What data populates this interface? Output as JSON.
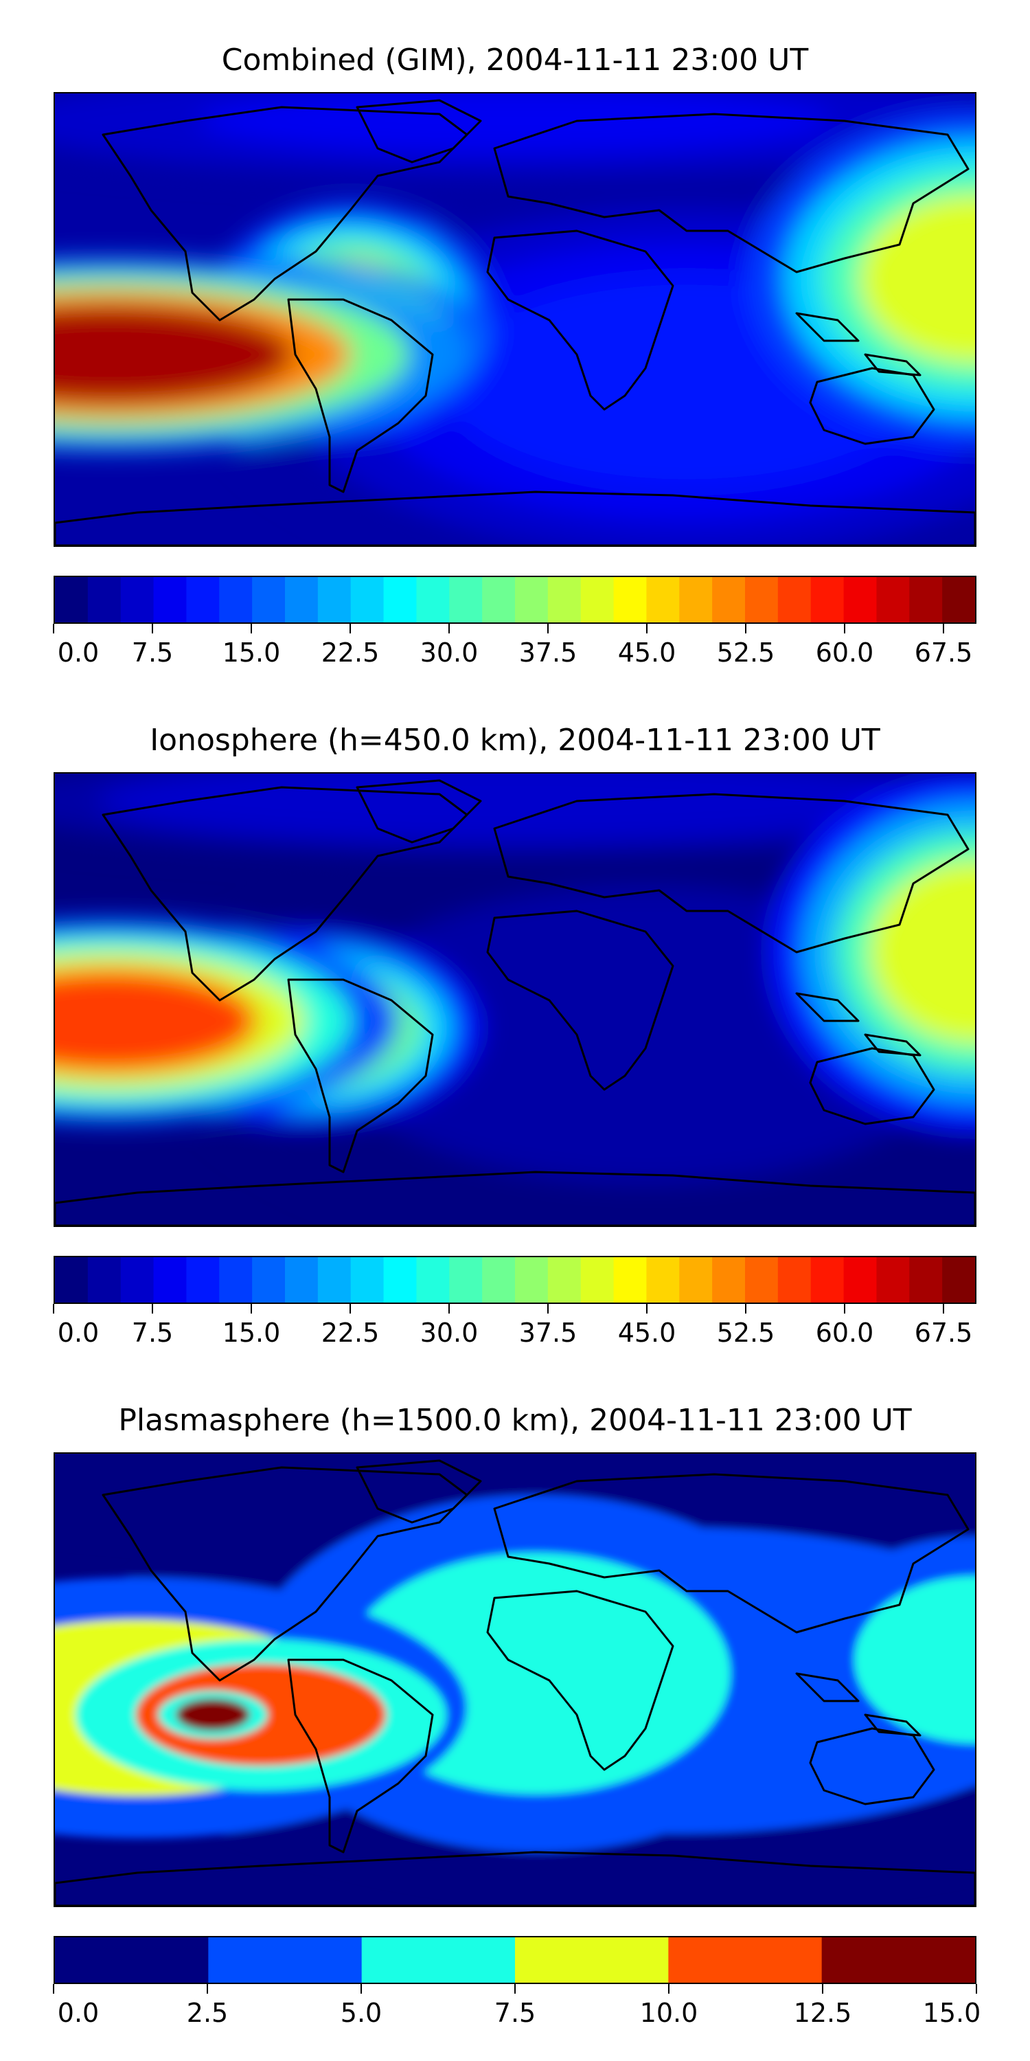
{
  "chart_data": [
    {
      "type": "heatmap",
      "title": "Combined (GIM), 2004-11-11 23:00 UT",
      "colormap": "jet",
      "levels": [
        0.0,
        2.5,
        5.0,
        7.5,
        10.0,
        12.5,
        15.0,
        17.5,
        20.0,
        22.5,
        25.0,
        27.5,
        30.0,
        32.5,
        35.0,
        37.5,
        40.0,
        42.5,
        45.0,
        47.5,
        50.0,
        52.5,
        55.0,
        57.5,
        60.0,
        62.5,
        65.0,
        67.5,
        70.0
      ],
      "colorbar_ticks": [
        "0.0",
        "7.5",
        "15.0",
        "22.5",
        "30.0",
        "37.5",
        "45.0",
        "52.5",
        "60.0",
        "67.5"
      ],
      "colorbar_tick_values": [
        0.0,
        7.5,
        15.0,
        22.5,
        30.0,
        37.5,
        45.0,
        52.5,
        60.0,
        67.5
      ],
      "vmin": 0.0,
      "vmax": 70.0,
      "features": [
        {
          "region": "central Pacific equatorial band",
          "value": 66
        },
        {
          "region": "eastern Pacific / Peru coast",
          "value": 60
        },
        {
          "region": "South America interior",
          "value": 45
        },
        {
          "region": "western Pacific near Philippines / New Guinea",
          "value": 42
        },
        {
          "region": "Atlantic / Africa / Indian Ocean",
          "value": 10
        },
        {
          "region": "high latitudes",
          "value": 8
        }
      ]
    },
    {
      "type": "heatmap",
      "title": "Ionosphere  (h=450.0 km), 2004-11-11 23:00 UT",
      "colormap": "jet",
      "levels": [
        0.0,
        2.5,
        5.0,
        7.5,
        10.0,
        12.5,
        15.0,
        17.5,
        20.0,
        22.5,
        25.0,
        27.5,
        30.0,
        32.5,
        35.0,
        37.5,
        40.0,
        42.5,
        45.0,
        47.5,
        50.0,
        52.5,
        55.0,
        57.5,
        60.0,
        62.5,
        65.0,
        67.5,
        70.0
      ],
      "colorbar_ticks": [
        "0.0",
        "7.5",
        "15.0",
        "22.5",
        "30.0",
        "37.5",
        "45.0",
        "52.5",
        "60.0",
        "67.5"
      ],
      "colorbar_tick_values": [
        0.0,
        7.5,
        15.0,
        22.5,
        30.0,
        37.5,
        45.0,
        52.5,
        60.0,
        67.5
      ],
      "vmin": 0.0,
      "vmax": 70.0,
      "features": [
        {
          "region": "central Pacific equatorial band",
          "value": 55
        },
        {
          "region": "eastern Pacific / Peru coast",
          "value": 45
        },
        {
          "region": "western Pacific near Philippines / New Guinea",
          "value": 40
        },
        {
          "region": "Atlantic / Africa / Indian Ocean",
          "value": 4
        },
        {
          "region": "high latitudes",
          "value": 7
        }
      ]
    },
    {
      "type": "heatmap",
      "title": "Plasmasphere (h=1500.0 km), 2004-11-11 23:00 UT",
      "colormap": "jet",
      "levels": [
        0.0,
        2.5,
        5.0,
        7.5,
        10.0,
        12.5,
        15.0
      ],
      "colorbar_ticks": [
        "0.0",
        "2.5",
        "5.0",
        "7.5",
        "10.0",
        "12.5",
        "15.0"
      ],
      "colorbar_tick_values": [
        0.0,
        2.5,
        5.0,
        7.5,
        10.0,
        12.5,
        15.0
      ],
      "vmin": 0.0,
      "vmax": 15.0,
      "features": [
        {
          "region": "central Pacific south of equator",
          "value": 13.5
        },
        {
          "region": "eastern Pacific / South America",
          "value": 11
        },
        {
          "region": "central Pacific band",
          "value": 8.5
        },
        {
          "region": "Atlantic / Africa",
          "value": 6
        },
        {
          "region": "western Pacific",
          "value": 6
        },
        {
          "region": "mid latitudes",
          "value": 3.5
        },
        {
          "region": "polar regions",
          "value": 1.5
        }
      ]
    }
  ]
}
